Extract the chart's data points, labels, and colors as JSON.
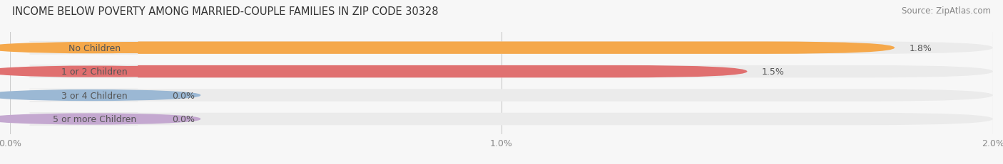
{
  "title": "INCOME BELOW POVERTY AMONG MARRIED-COUPLE FAMILIES IN ZIP CODE 30328",
  "source": "Source: ZipAtlas.com",
  "categories": [
    "No Children",
    "1 or 2 Children",
    "3 or 4 Children",
    "5 or more Children"
  ],
  "values": [
    1.8,
    1.5,
    0.0,
    0.0
  ],
  "bar_colors": [
    "#F5A84B",
    "#E07070",
    "#9BB8D4",
    "#C4A8D0"
  ],
  "xlim": [
    0,
    2.0
  ],
  "xticks": [
    0.0,
    1.0,
    2.0
  ],
  "xticklabels": [
    "0.0%",
    "1.0%",
    "2.0%"
  ],
  "bar_height": 0.52,
  "title_fontsize": 10.5,
  "source_fontsize": 8.5,
  "tick_fontsize": 9,
  "label_fontsize": 9,
  "value_fontsize": 9,
  "background_color": "#f7f7f7",
  "bar_bg_color": "#ebebeb",
  "label_bg_color": "#ffffff",
  "text_color": "#555555",
  "title_color": "#333333"
}
